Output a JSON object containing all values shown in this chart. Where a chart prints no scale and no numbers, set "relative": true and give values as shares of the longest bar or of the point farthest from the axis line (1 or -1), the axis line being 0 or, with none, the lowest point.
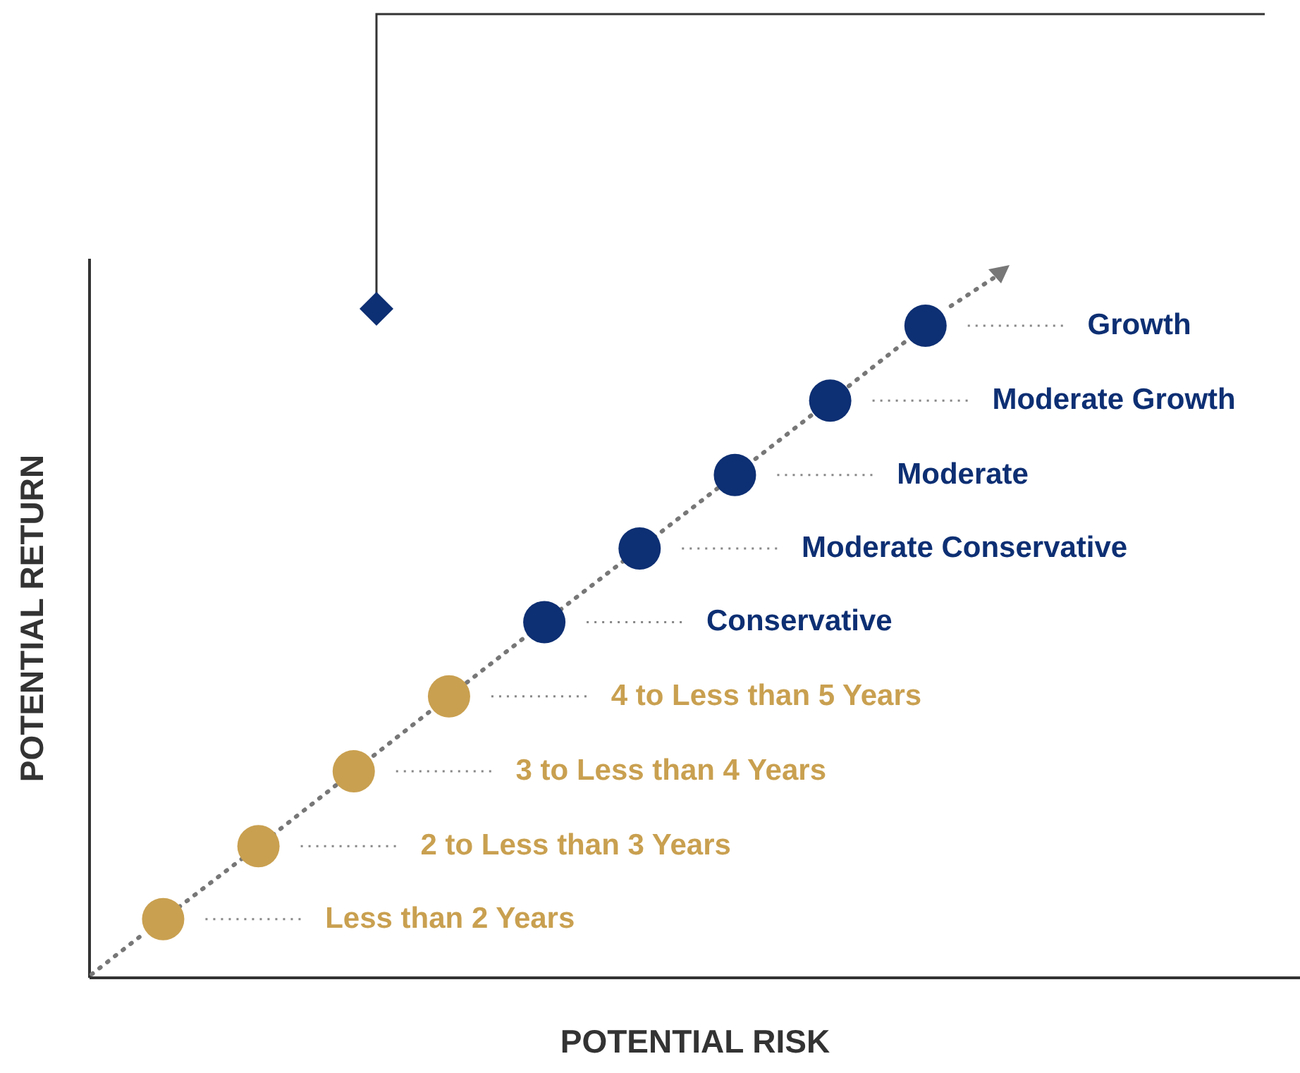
{
  "chart_data": {
    "type": "line",
    "xlabel": "POTENTIAL RISK",
    "ylabel": "POTENTIAL RETURN",
    "relative": true,
    "marker": "circle",
    "line_style": "dotted",
    "grid": false,
    "categories": [
      null,
      null,
      null,
      null,
      null,
      null,
      null,
      null,
      null
    ],
    "series": [
      {
        "color": "#777777",
        "values": [
          0.089,
          0.201,
          0.316,
          0.431,
          0.545,
          0.658,
          0.771,
          0.885,
          1
        ],
        "colors": [
          "#c9a050",
          "#c9a050",
          "#c9a050",
          "#c9a050",
          "#0d2f73",
          "#0d2f73",
          "#0d2f73",
          "#0d2f73",
          "#0d2f73"
        ]
      }
    ],
    "annotations": [
      "Less than 2 Years",
      "2 to Less than 3 Years",
      "3 to Less than 4 Years",
      "4 to Less than 5 Years",
      "Conservative",
      "Moderate Conservative",
      "Moderate",
      "Moderate Growth",
      "Growth"
    ]
  }
}
